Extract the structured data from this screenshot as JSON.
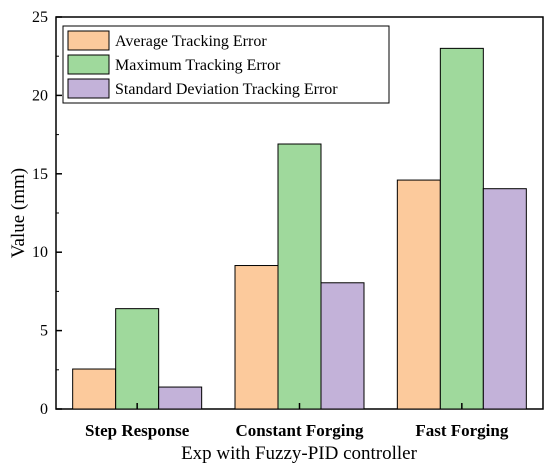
{
  "chart_data": {
    "type": "bar",
    "categories": [
      "Step Response",
      "Constant Forging",
      "Fast Forging"
    ],
    "series": [
      {
        "name": "Average Tracking Error",
        "values": [
          2.55,
          9.15,
          14.6
        ],
        "color": "#fcca9c"
      },
      {
        "name": "Maximum Tracking Error",
        "values": [
          6.4,
          16.9,
          23.0
        ],
        "color": "#9fd99c"
      },
      {
        "name": "Standard Deviation Tracking Error",
        "values": [
          1.4,
          8.05,
          14.05
        ],
        "color": "#c3b2d9"
      }
    ],
    "xlabel": "Exp with Fuzzy-PID controller",
    "ylabel": "Value (mm)",
    "ylim": [
      0,
      25
    ],
    "yticks": [
      0,
      5,
      10,
      15,
      20,
      25
    ],
    "legend_position": "top-left",
    "grid": false
  }
}
